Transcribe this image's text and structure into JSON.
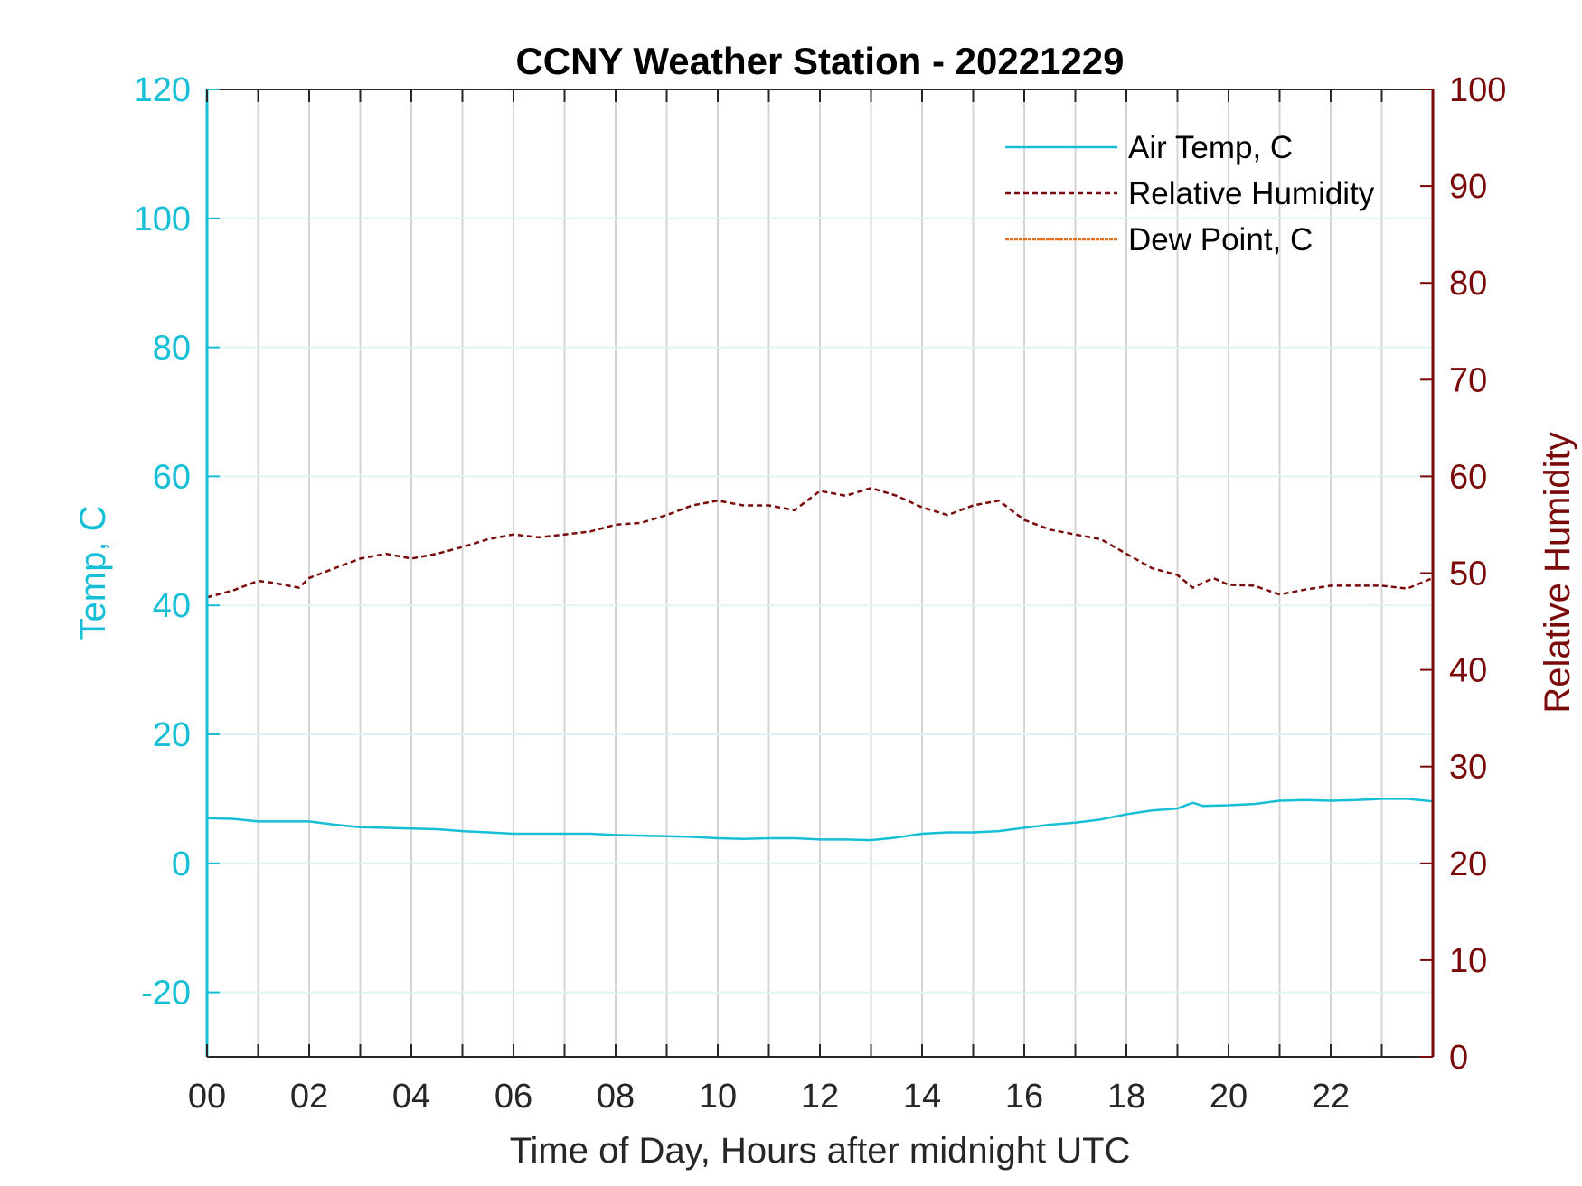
{
  "chart_data": {
    "type": "line",
    "title": "CCNY Weather Station - 20221229",
    "xlabel": "Time of Day, Hours after midnight UTC",
    "ylabel_left": "Temp, C",
    "ylabel_right": "Relative Humidity",
    "xlim": [
      0,
      24
    ],
    "ylim_left": [
      -30,
      120
    ],
    "ylim_right": [
      0,
      100
    ],
    "x_ticks": [
      "00",
      "02",
      "04",
      "06",
      "08",
      "10",
      "12",
      "14",
      "16",
      "18",
      "20",
      "22"
    ],
    "y_left_ticks": [
      "-20",
      "0",
      "20",
      "40",
      "60",
      "80",
      "100",
      "120"
    ],
    "y_right_ticks": [
      "0",
      "10",
      "20",
      "30",
      "40",
      "50",
      "60",
      "70",
      "80",
      "90",
      "100"
    ],
    "grid": true,
    "legend_position": "top-right",
    "colors": {
      "left_axis": "#17bfd6",
      "right_axis": "#7a0a0a",
      "dew_point": "#e07020"
    },
    "series": [
      {
        "name": "Air Temp, C",
        "axis": "left",
        "style": "solid",
        "color": "#17bfd6",
        "x": [
          0,
          0.5,
          1,
          1.5,
          2,
          2.5,
          3,
          3.5,
          4,
          4.5,
          5,
          5.5,
          6,
          6.5,
          7,
          7.5,
          8,
          8.5,
          9,
          9.5,
          10,
          10.5,
          11,
          11.5,
          12,
          12.5,
          13,
          13.5,
          14,
          14.5,
          15,
          15.5,
          16,
          16.5,
          17,
          17.5,
          18,
          18.5,
          19,
          19.3,
          19.5,
          20,
          20.5,
          21,
          21.5,
          22,
          22.5,
          23,
          23.5,
          24
        ],
        "y": [
          7,
          6.9,
          6.5,
          6.5,
          6.5,
          6.0,
          5.6,
          5.5,
          5.4,
          5.3,
          5.0,
          4.8,
          4.6,
          4.6,
          4.6,
          4.6,
          4.4,
          4.3,
          4.2,
          4.1,
          3.9,
          3.8,
          3.9,
          3.9,
          3.7,
          3.7,
          3.6,
          4.0,
          4.6,
          4.8,
          4.8,
          5.0,
          5.5,
          6.0,
          6.3,
          6.8,
          7.6,
          8.2,
          8.5,
          9.4,
          8.9,
          9.0,
          9.2,
          9.7,
          9.8,
          9.7,
          9.8,
          10.0,
          10.0,
          9.6
        ]
      },
      {
        "name": "Relative Humidity",
        "axis": "right",
        "style": "dashed",
        "color": "#7a0a0a",
        "x": [
          0,
          0.5,
          1,
          1.3,
          1.8,
          2,
          2.5,
          3,
          3.5,
          4,
          4.5,
          5,
          5.5,
          6,
          6.5,
          7,
          7.5,
          8,
          8.5,
          9,
          9.5,
          10,
          10.5,
          11,
          11.5,
          12,
          12.5,
          13,
          13.5,
          14,
          14.5,
          15,
          15.5,
          16,
          16.5,
          17,
          17.5,
          18,
          18.5,
          19,
          19.3,
          19.7,
          20,
          20.5,
          21,
          21.5,
          22,
          22.5,
          23,
          23.5,
          24
        ],
        "y": [
          47.5,
          48.2,
          49.2,
          49.0,
          48.5,
          49.5,
          50.5,
          51.5,
          52.0,
          51.5,
          52.0,
          52.7,
          53.5,
          54.0,
          53.7,
          54.0,
          54.3,
          55.0,
          55.2,
          56.0,
          57.0,
          57.5,
          57.0,
          57.0,
          56.5,
          58.5,
          58.0,
          58.8,
          58.0,
          56.8,
          56.0,
          57.0,
          57.5,
          55.5,
          54.5,
          54.0,
          53.5,
          52.0,
          50.5,
          49.8,
          48.5,
          49.5,
          48.8,
          48.7,
          47.8,
          48.3,
          48.7,
          48.7,
          48.7,
          48.4,
          49.5
        ]
      },
      {
        "name": "Dew Point, C",
        "axis": "left",
        "style": "dash-dot",
        "color": "#e07020",
        "x": [],
        "y": []
      }
    ]
  }
}
